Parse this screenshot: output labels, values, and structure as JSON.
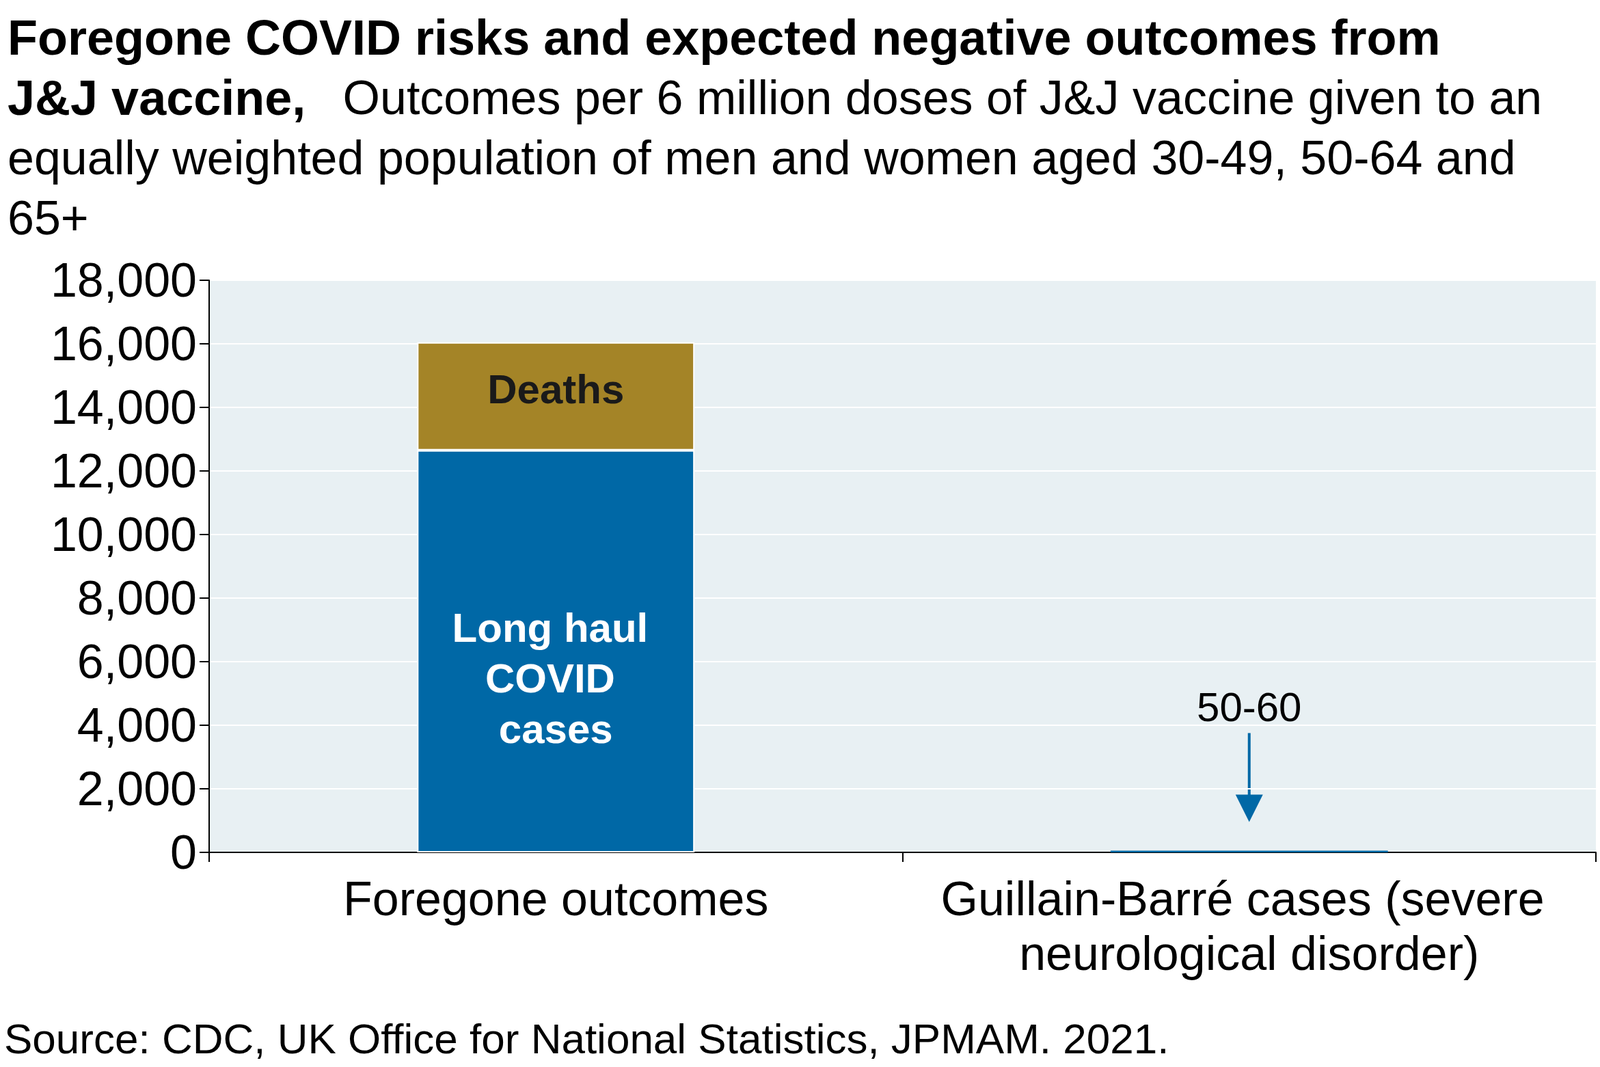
{
  "chart_data": {
    "type": "bar",
    "title": "Foregone COVID risks and expected negative outcomes from J&J vaccine,",
    "subtitle": "Outcomes per 6 million doses of J&J vaccine given to an equally weighted population of men and women aged 30-49, 50-64 and 65+",
    "categories": [
      "Foregone outcomes",
      "Guillain-Barré cases (severe neurological disorder)"
    ],
    "series": [
      {
        "name": "Long haul COVID cases",
        "color": "#0068a6",
        "values": [
          12650,
          null
        ]
      },
      {
        "name": "Deaths",
        "color": "#a48427",
        "values": [
          3400,
          null
        ]
      },
      {
        "color": "#0068a6",
        "values": [
          null,
          55
        ]
      }
    ],
    "annotations": [
      {
        "text": "50-60",
        "x": "Guillain-Barré cases (severe neurological disorder)"
      }
    ],
    "stacked": true,
    "ylim": [
      0,
      18000
    ],
    "yticks": [
      0,
      {
        "value": 2000,
        "label": "2,000"
      },
      {
        "value": 4000,
        "label": "4,000"
      },
      {
        "value": 6000,
        "label": "6,000"
      },
      {
        "value": 8000,
        "label": "8,000"
      },
      {
        "value": 10000,
        "label": "10,000"
      },
      {
        "value": 12000,
        "label": "12,000"
      },
      {
        "value": 14000,
        "label": "14,000"
      },
      {
        "value": 16000,
        "label": "16,000"
      },
      {
        "value": 18000,
        "label": "18,000"
      }
    ],
    "grid": true,
    "source": "Source: CDC, UK Office for National Statistics, JPMAM. 2021."
  }
}
